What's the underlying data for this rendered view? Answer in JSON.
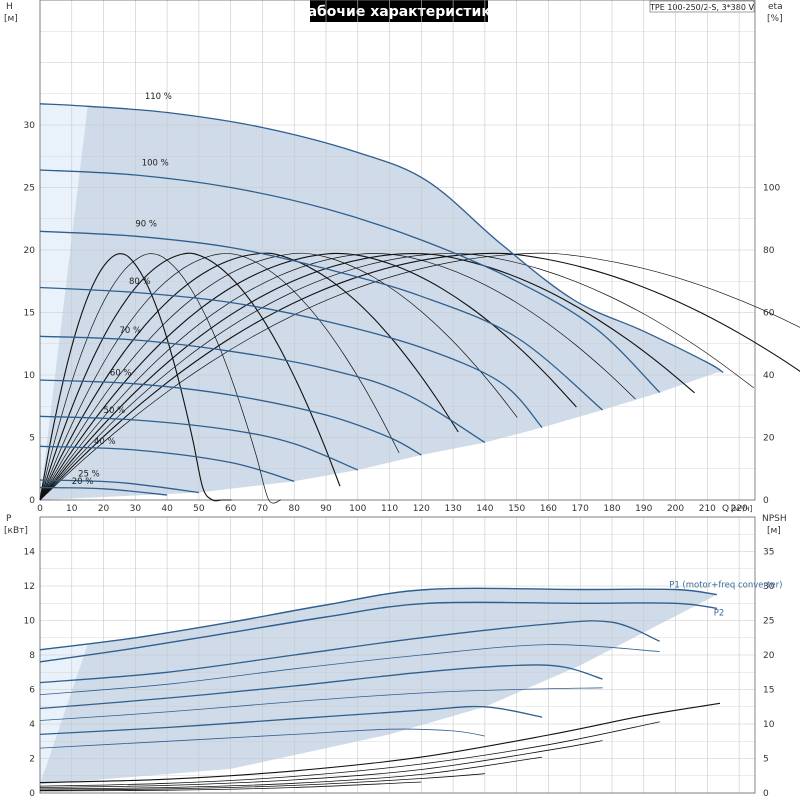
{
  "title": "Рабочие характеристики",
  "pump_model": "TPE 100-250/2-S, 3*380 V",
  "colors": {
    "envelope_fill": "#cfdbe8",
    "low_fill": "#e9f2fb",
    "curve": "#2f5f8f",
    "efficiency": "#111111",
    "grid": "#c8c8c8",
    "title_bg": "#000000"
  },
  "axes": {
    "h_label": "H",
    "h_unit": "[м]",
    "eta_label": "eta",
    "eta_unit": "[%]",
    "q_label": "Q",
    "q_unit": "[м³/ч]",
    "p_label": "P",
    "p_unit": "[кВт]",
    "npsh_label": "NPSH",
    "npsh_unit": "[м]"
  },
  "chart_data": [
    {
      "type": "line",
      "panel": "head",
      "xlabel": "Q [м³/ч]",
      "ylabel": "H [м]",
      "y2label": "eta [%]",
      "xlim": [
        0,
        225
      ],
      "ylim": [
        0,
        40
      ],
      "y2lim": [
        0,
        160
      ],
      "x_ticks": [
        0,
        10,
        20,
        30,
        40,
        50,
        60,
        70,
        80,
        90,
        100,
        110,
        120,
        130,
        140,
        150,
        160,
        170,
        180,
        190,
        200,
        210,
        220
      ],
      "y_ticks": [
        0,
        5,
        10,
        15,
        20,
        25,
        30
      ],
      "y2_ticks": [
        0,
        20,
        40,
        60,
        80,
        100
      ],
      "grid": true,
      "speed_curves": [
        {
          "label": "110 %",
          "points": [
            [
              0,
              31.7
            ],
            [
              15,
              31.5
            ],
            [
              40,
              31.0
            ],
            [
              70,
              29.8
            ],
            [
              100,
              27.8
            ],
            [
              122,
              25.5
            ],
            [
              145,
              20.5
            ],
            [
              168,
              16.0
            ],
            [
              190,
              13.5
            ],
            [
              210,
              11.0
            ],
            [
              215,
              10.2
            ]
          ]
        },
        {
          "label": "100 %",
          "points": [
            [
              0,
              26.4
            ],
            [
              30,
              26.0
            ],
            [
              60,
              25.0
            ],
            [
              90,
              23.3
            ],
            [
              120,
              20.8
            ],
            [
              150,
              17.5
            ],
            [
              175,
              13.7
            ],
            [
              195,
              8.6
            ]
          ]
        },
        {
          "label": "90 %",
          "points": [
            [
              0,
              21.5
            ],
            [
              30,
              21.1
            ],
            [
              60,
              20.2
            ],
            [
              90,
              18.5
            ],
            [
              120,
              16.3
            ],
            [
              150,
              13.0
            ],
            [
              177,
              7.2
            ]
          ]
        },
        {
          "label": "80 %",
          "points": [
            [
              0,
              17.0
            ],
            [
              30,
              16.6
            ],
            [
              60,
              15.8
            ],
            [
              90,
              14.3
            ],
            [
              120,
              12.2
            ],
            [
              145,
              9.4
            ],
            [
              158,
              5.8
            ]
          ]
        },
        {
          "label": "70 %",
          "points": [
            [
              0,
              13.1
            ],
            [
              30,
              12.8
            ],
            [
              60,
              11.9
            ],
            [
              90,
              10.5
            ],
            [
              115,
              8.5
            ],
            [
              140,
              4.6
            ]
          ]
        },
        {
          "label": "60 %",
          "points": [
            [
              0,
              9.6
            ],
            [
              30,
              9.3
            ],
            [
              60,
              8.4
            ],
            [
              90,
              6.8
            ],
            [
              110,
              5.0
            ],
            [
              120,
              3.6
            ]
          ]
        },
        {
          "label": "50 %",
          "points": [
            [
              0,
              6.7
            ],
            [
              30,
              6.4
            ],
            [
              60,
              5.6
            ],
            [
              80,
              4.5
            ],
            [
              100,
              2.4
            ]
          ]
        },
        {
          "label": "40 %",
          "points": [
            [
              0,
              4.3
            ],
            [
              30,
              4.0
            ],
            [
              60,
              3.0
            ],
            [
              80,
              1.5
            ]
          ]
        },
        {
          "label": "25 %",
          "points": [
            [
              0,
              1.6
            ],
            [
              25,
              1.4
            ],
            [
              50,
              0.6
            ]
          ]
        },
        {
          "label": "20 %",
          "points": [
            [
              0,
              1.0
            ],
            [
              20,
              0.9
            ],
            [
              40,
              0.4
            ]
          ]
        }
      ],
      "efficiency_peaks": [
        {
          "q": 26,
          "eta": 79
        },
        {
          "q": 36,
          "eta": 79
        },
        {
          "q": 48,
          "eta": 79
        },
        {
          "q": 60,
          "eta": 79
        },
        {
          "q": 72,
          "eta": 79
        },
        {
          "q": 84,
          "eta": 79
        },
        {
          "q": 96,
          "eta": 79
        },
        {
          "q": 108,
          "eta": 79
        },
        {
          "q": 120,
          "eta": 79
        },
        {
          "q": 132,
          "eta": 79
        },
        {
          "q": 145,
          "eta": 79
        },
        {
          "q": 160,
          "eta": 79
        }
      ],
      "curve_labels": [
        {
          "text": "110 %",
          "q": 33,
          "h": 32.0
        },
        {
          "text": "100 %",
          "q": 32,
          "h": 26.7
        },
        {
          "text": "90 %",
          "q": 30,
          "h": 21.8
        },
        {
          "text": "80 %",
          "q": 28,
          "h": 17.2
        },
        {
          "text": "70 %",
          "q": 25,
          "h": 13.3
        },
        {
          "text": "60 %",
          "q": 22,
          "h": 9.9
        },
        {
          "text": "50 %",
          "q": 20,
          "h": 6.9
        },
        {
          "text": "40 %",
          "q": 17,
          "h": 4.4
        },
        {
          "text": "25 %",
          "q": 12,
          "h": 1.8
        },
        {
          "text": "20 %",
          "q": 10,
          "h": 1.2
        }
      ]
    },
    {
      "type": "line",
      "panel": "power",
      "xlabel": "Q [м³/ч]",
      "ylabel": "P [кВт]",
      "y2label": "NPSH [м]",
      "xlim": [
        0,
        225
      ],
      "ylim": [
        0,
        16
      ],
      "y2lim": [
        0,
        40
      ],
      "y_ticks": [
        0,
        2,
        4,
        6,
        8,
        10,
        12,
        14
      ],
      "y2_ticks": [
        0,
        5,
        10,
        15,
        20,
        25,
        30,
        35
      ],
      "grid": true,
      "series": [
        {
          "name": "P1 (motor+freq converter)",
          "points": [
            [
              0,
              8.3
            ],
            [
              30,
              9.0
            ],
            [
              60,
              9.9
            ],
            [
              90,
              10.9
            ],
            [
              122,
              11.8
            ],
            [
              170,
              11.8
            ],
            [
              200,
              11.8
            ],
            [
              213,
              11.5
            ]
          ]
        },
        {
          "name": "P2",
          "points": [
            [
              0,
              7.6
            ],
            [
              30,
              8.4
            ],
            [
              60,
              9.3
            ],
            [
              90,
              10.2
            ],
            [
              122,
              11.0
            ],
            [
              170,
              11.0
            ],
            [
              200,
              11.0
            ],
            [
              213,
              10.7
            ]
          ]
        }
      ],
      "speed_power_curves": [
        [
          [
            0,
            6.4
          ],
          [
            40,
            7.0
          ],
          [
            80,
            8.0
          ],
          [
            120,
            9.0
          ],
          [
            160,
            9.8
          ],
          [
            180,
            9.9
          ],
          [
            195,
            8.8
          ]
        ],
        [
          [
            0,
            5.7
          ],
          [
            40,
            6.3
          ],
          [
            80,
            7.2
          ],
          [
            120,
            8.0
          ],
          [
            160,
            8.6
          ],
          [
            195,
            8.2
          ]
        ],
        [
          [
            0,
            4.9
          ],
          [
            40,
            5.5
          ],
          [
            80,
            6.2
          ],
          [
            120,
            7.0
          ],
          [
            150,
            7.4
          ],
          [
            165,
            7.3
          ],
          [
            177,
            6.6
          ]
        ],
        [
          [
            0,
            4.2
          ],
          [
            40,
            4.7
          ],
          [
            80,
            5.3
          ],
          [
            120,
            5.8
          ],
          [
            150,
            6.0
          ],
          [
            177,
            6.1
          ]
        ],
        [
          [
            0,
            3.4
          ],
          [
            40,
            3.8
          ],
          [
            80,
            4.3
          ],
          [
            120,
            4.8
          ],
          [
            140,
            5.0
          ],
          [
            158,
            4.4
          ]
        ],
        [
          [
            0,
            2.6
          ],
          [
            40,
            3.0
          ],
          [
            80,
            3.4
          ],
          [
            110,
            3.7
          ],
          [
            130,
            3.6
          ],
          [
            140,
            3.3
          ]
        ]
      ],
      "npsh_curves": [
        [
          [
            0,
            1.5
          ],
          [
            40,
            2.0
          ],
          [
            80,
            3.2
          ],
          [
            120,
            5.2
          ],
          [
            160,
            8.4
          ],
          [
            190,
            11.2
          ],
          [
            214,
            13.0
          ]
        ],
        [
          [
            0,
            1.0
          ],
          [
            40,
            1.4
          ],
          [
            80,
            2.4
          ],
          [
            120,
            4.2
          ],
          [
            160,
            7.0
          ],
          [
            195,
            10.3
          ]
        ],
        [
          [
            0,
            0.8
          ],
          [
            40,
            1.1
          ],
          [
            80,
            1.9
          ],
          [
            120,
            3.4
          ],
          [
            160,
            6.2
          ],
          [
            177,
            7.6
          ]
        ],
        [
          [
            0,
            0.6
          ],
          [
            40,
            0.8
          ],
          [
            80,
            1.4
          ],
          [
            120,
            2.7
          ],
          [
            158,
            5.2
          ]
        ],
        [
          [
            0,
            0.4
          ],
          [
            40,
            0.6
          ],
          [
            80,
            1.1
          ],
          [
            120,
            2.1
          ],
          [
            140,
            2.8
          ]
        ],
        [
          [
            0,
            0.3
          ],
          [
            40,
            0.4
          ],
          [
            80,
            0.8
          ],
          [
            120,
            1.6
          ]
        ]
      ]
    }
  ]
}
